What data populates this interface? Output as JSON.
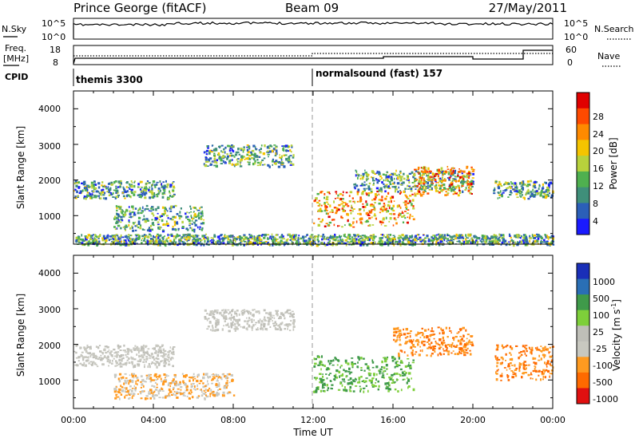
{
  "header": {
    "station": "Prince George (fitACF)",
    "beam": "Beam 09",
    "date": "27/May/2011"
  },
  "strips": {
    "nsky_label": "N.Sky",
    "nsky_ticks": [
      "10^5",
      "10^0"
    ],
    "nsearch_label": "N.Search",
    "nsearch_ticks": [
      "10^5",
      "10^0"
    ],
    "freq_label_1": "Freq.",
    "freq_label_2": "[MHz]",
    "freq_ticks": [
      "18",
      "8"
    ],
    "nave_label": "Nave",
    "nave_ticks": [
      "60",
      "0"
    ],
    "cpid_label": "CPID",
    "cpid_segments": [
      {
        "label": "themis 3300",
        "start_hour": 0,
        "end_hour": 12
      },
      {
        "label": "normalsound (fast) 157",
        "start_hour": 12,
        "end_hour": 24
      }
    ]
  },
  "colors": {
    "power": [
      "#1a1aff",
      "#2b5fb8",
      "#3f8f7a",
      "#4fb04f",
      "#b8d23c",
      "#f5c400",
      "#ff8a00",
      "#ff4a00",
      "#e00000"
    ],
    "velocity": [
      "#e01010",
      "#ff6a00",
      "#ff9a20",
      "#c8c8c0",
      "#bfbfb8",
      "#7ecf3a",
      "#3f9a4a",
      "#2a6fb5",
      "#1a2fb8"
    ]
  },
  "chart_data": [
    {
      "type": "heatmap",
      "name": "power",
      "ylabel": "Slant Range [km]",
      "ylim": [
        200,
        4500
      ],
      "y_ticks": [
        "4000",
        "3000",
        "2000",
        "1000"
      ],
      "x_ticks": [
        "00:00",
        "04:00",
        "08:00",
        "12:00",
        "16:00",
        "20:00",
        "00:00"
      ],
      "xlim": [
        0,
        24
      ],
      "colorbar": {
        "label": "Power [dB]",
        "ticks": [
          "28",
          "24",
          "20",
          "16",
          "12",
          "8",
          "4"
        ],
        "range": [
          0,
          32
        ]
      },
      "scatter_bands": [
        {
          "t0": 0,
          "t1": 5,
          "r0": 1500,
          "r1": 2000
        },
        {
          "t0": 2,
          "t1": 6.5,
          "r0": 600,
          "r1": 1300
        },
        {
          "t0": 6.5,
          "t1": 11,
          "r0": 2400,
          "r1": 3000
        },
        {
          "t0": 12,
          "t1": 17,
          "r0": 700,
          "r1": 1700
        },
        {
          "t0": 14,
          "t1": 20,
          "r0": 1700,
          "r1": 2300
        },
        {
          "t0": 17,
          "t1": 20,
          "r0": 1600,
          "r1": 2400
        },
        {
          "t0": 21,
          "t1": 24,
          "r0": 1500,
          "r1": 2000
        },
        {
          "t0": 0,
          "t1": 24,
          "r0": 200,
          "r1": 500
        }
      ]
    },
    {
      "type": "heatmap",
      "name": "velocity",
      "ylabel": "Slant Range [km]",
      "ylim": [
        200,
        4500
      ],
      "y_ticks": [
        "4000",
        "3000",
        "2000",
        "1000"
      ],
      "x_ticks": [
        "00:00",
        "04:00",
        "08:00",
        "12:00",
        "16:00",
        "20:00",
        "00:00"
      ],
      "xlim": [
        0,
        24
      ],
      "xlabel": "Time UT",
      "colorbar": {
        "label": "Velocity [m s",
        "label_superscript": "-1",
        "label_close": "]",
        "ticks": [
          "1000",
          "500",
          "100",
          "25",
          "-25",
          "-100",
          "-500",
          "-1000"
        ],
        "range": [
          -1200,
          1200
        ]
      },
      "scatter_bands": [
        {
          "t0": 0,
          "t1": 5,
          "r0": 1400,
          "r1": 2000
        },
        {
          "t0": 2,
          "t1": 8,
          "r0": 500,
          "r1": 1200
        },
        {
          "t0": 6.5,
          "t1": 11,
          "r0": 2400,
          "r1": 3000
        },
        {
          "t0": 12,
          "t1": 17,
          "r0": 700,
          "r1": 1700
        },
        {
          "t0": 16,
          "t1": 20,
          "r0": 1700,
          "r1": 2500
        },
        {
          "t0": 21,
          "t1": 24,
          "r0": 1000,
          "r1": 2000
        }
      ]
    }
  ]
}
